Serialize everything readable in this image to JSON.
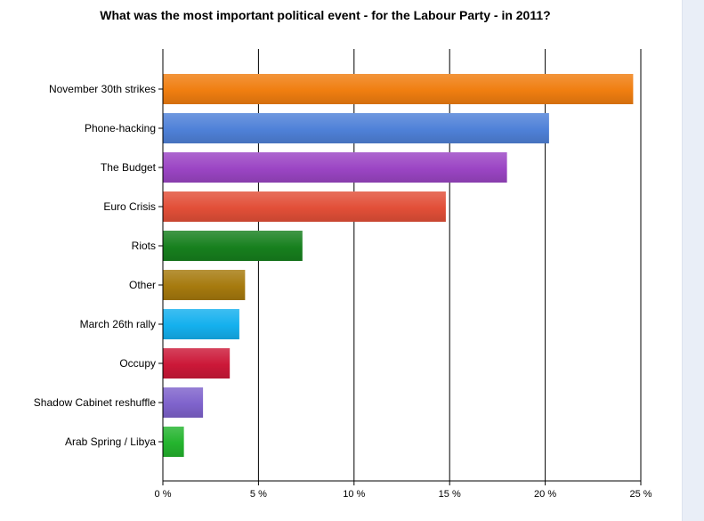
{
  "chart_data": {
    "type": "bar",
    "orientation": "horizontal",
    "title": "What was the most important political event - for the Labour Party - in 2011?",
    "categories": [
      "November 30th strikes",
      "Phone-hacking",
      "The Budget",
      "Euro Crisis",
      "Riots",
      "Other",
      "March 26th rally",
      "Occupy",
      "Shadow Cabinet reshuffle",
      "Arab Spring / Libya"
    ],
    "values": [
      24.6,
      20.2,
      18.0,
      14.8,
      7.3,
      4.3,
      4.0,
      3.5,
      2.1,
      1.1
    ],
    "colors": [
      "#f07e10",
      "#4f81d8",
      "#9b45c4",
      "#e24f38",
      "#17801e",
      "#a67a0e",
      "#14b0ee",
      "#cc1838",
      "#7f63cc",
      "#24b42e"
    ],
    "xlim": [
      0,
      25
    ],
    "xticks": [
      0,
      5,
      10,
      15,
      20,
      25
    ],
    "xtick_labels": [
      "0 %",
      "5 %",
      "10 %",
      "15 %",
      "20 %",
      "25 %"
    ],
    "grid": true
  }
}
